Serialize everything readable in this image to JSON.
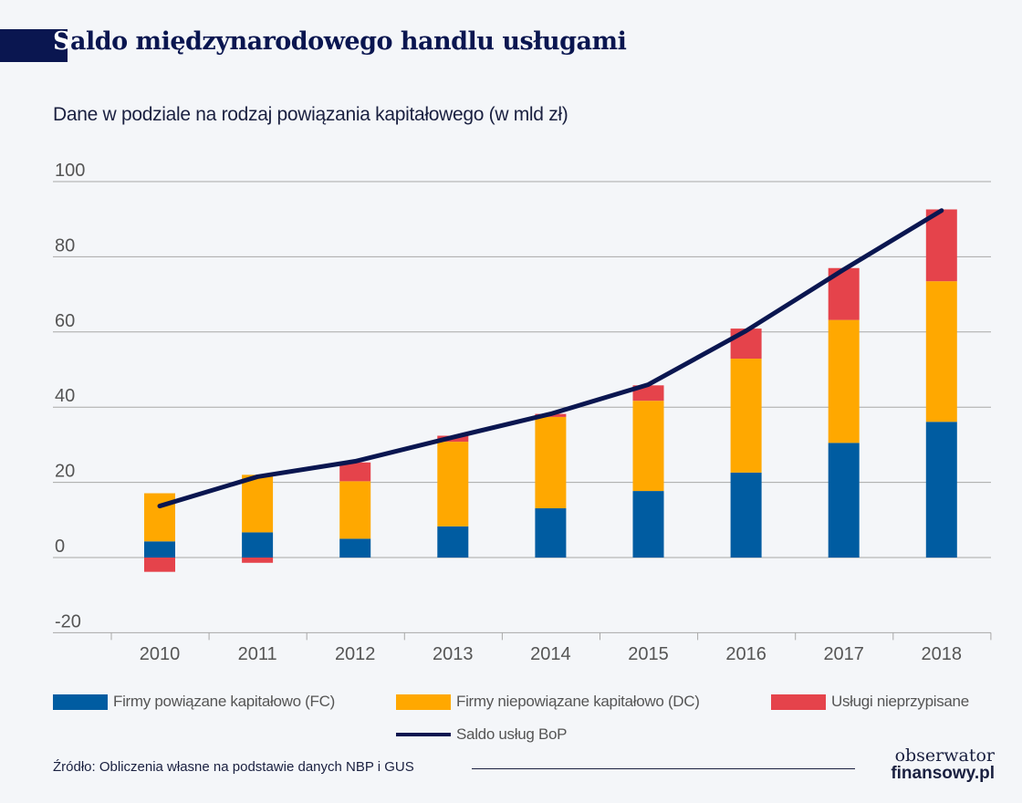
{
  "title": "Saldo międzynarodowego handlu usługami",
  "title_first": "S",
  "title_rest": "aldo międzynarodowego handlu usługami",
  "chart_data": {
    "type": "bar",
    "stacked": true,
    "title": "Saldo międzynarodowego handlu usługami",
    "subtitle": "Dane w podziale na rodzaj powiązania kapitałowego (w mld zł)",
    "categories": [
      "2010",
      "2011",
      "2012",
      "2013",
      "2014",
      "2015",
      "2016",
      "2017",
      "2018"
    ],
    "ylim": [
      -20,
      100
    ],
    "yticks": [
      "100",
      "80",
      "60",
      "40",
      "20",
      "0",
      "-20"
    ],
    "ytick_values": [
      100,
      80,
      60,
      40,
      20,
      0,
      -20
    ],
    "grid": true,
    "legend_position": "bottom",
    "series": [
      {
        "name": "Firmy powiązane kapitałowo (FC)",
        "type": "bar",
        "color": "#005ca1",
        "values": [
          4.3,
          6.7,
          5.0,
          8.3,
          13.1,
          17.7,
          22.6,
          30.5,
          36.1
        ]
      },
      {
        "name": "Firmy niepowiązane kapitałowo (DC)",
        "type": "bar",
        "color": "#ffa800",
        "values": [
          12.8,
          15.3,
          15.3,
          22.5,
          24.3,
          24.0,
          30.3,
          32.7,
          37.4
        ]
      },
      {
        "name": "Usługi nieprzypisane",
        "type": "bar",
        "color": "#e5434b",
        "values": [
          -3.8,
          -1.4,
          5.0,
          1.6,
          0.8,
          4.1,
          8.0,
          13.8,
          19.1
        ]
      },
      {
        "name": "Saldo usług BoP",
        "type": "line",
        "color": "#0a1650",
        "values": [
          13.7,
          21.5,
          25.6,
          32.0,
          38.2,
          46.0,
          60.3,
          76.6,
          92.3
        ]
      }
    ]
  },
  "source": "Źródło: Obliczenia własne na podstawie danych NBP i GUS",
  "logo": {
    "line1": "obserwator",
    "line2": "finansowy.pl"
  }
}
